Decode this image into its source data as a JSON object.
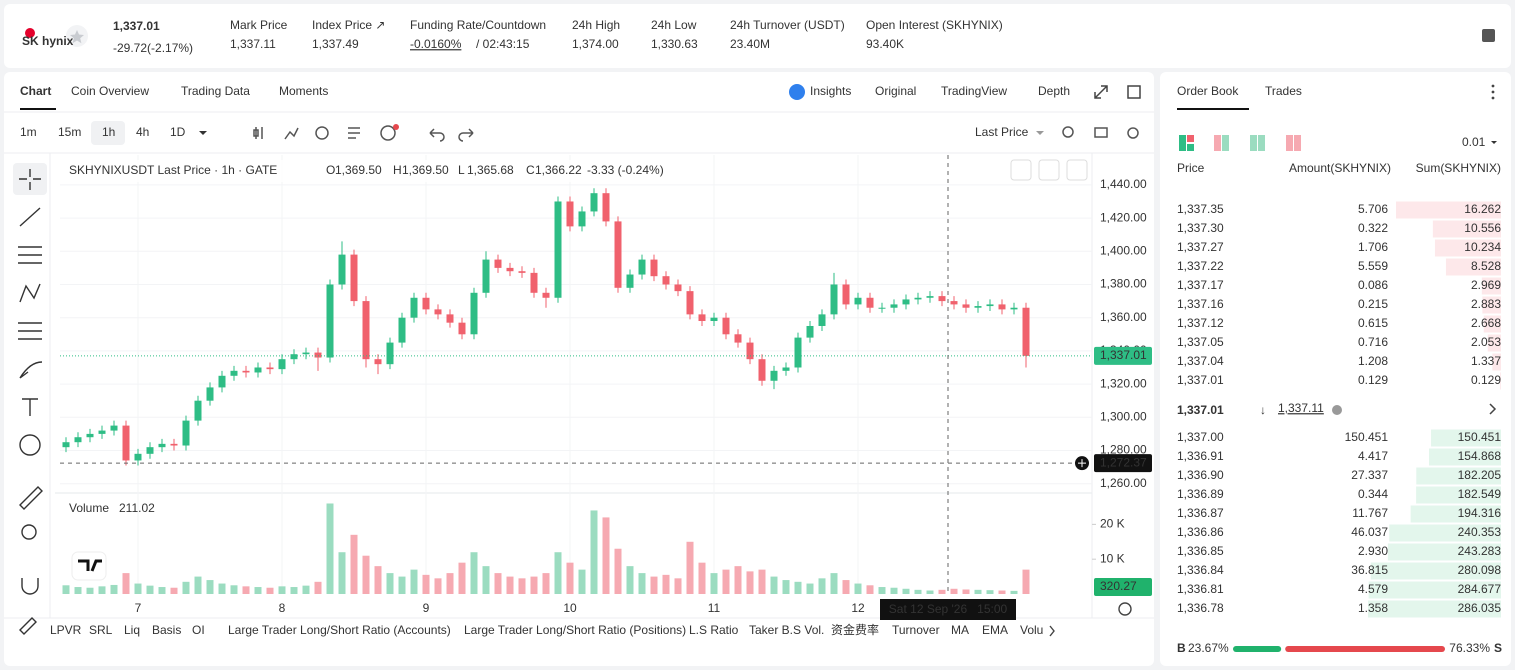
{
  "header": {
    "logo": "SK hynix",
    "price": "1,337.01",
    "change": "-29.72(-2.17%)",
    "stats": [
      {
        "label": "Mark Price",
        "value": "1,337.11"
      },
      {
        "label": "Index Price ↗",
        "value": "1,337.49"
      },
      {
        "label": "Funding Rate/Countdown",
        "value": "-0.0160%",
        "extra": "/ 02:43:15"
      },
      {
        "label": "24h High",
        "value": "1,374.00"
      },
      {
        "label": "24h Low",
        "value": "1,330.63"
      },
      {
        "label": "24h Turnover (USDT)",
        "value": "23.40M"
      },
      {
        "label": "Open Interest (SKHYNIX)",
        "value": "93.40K"
      }
    ]
  },
  "chart_panel": {
    "tabs": [
      "Chart",
      "Coin Overview",
      "Trading Data",
      "Moments"
    ],
    "views": [
      "Insights",
      "Original",
      "TradingView",
      "Depth"
    ],
    "intervals": [
      "1m",
      "15m",
      "1h",
      "4h",
      "1D"
    ],
    "price_source": "Last Price",
    "bottom_items": [
      "LPVR",
      "SRL",
      "Liq",
      "Basis",
      "OI",
      "Large Trader Long/Short Ratio (Accounts)",
      "Large Trader Long/Short Ratio (Positions)",
      "L.S Ratio",
      "Taker B.S Vol.",
      "资金费率",
      "Turnover",
      "MA",
      "EMA",
      "Volu"
    ]
  },
  "chart_data": [
    {
      "type": "candlestick",
      "title": "SKHYNIXUSDT Last Price · 1h · GATE",
      "ohlc_legend": [
        {
          "label": "O",
          "value": "1,369.50"
        },
        {
          "label": "H",
          "value": "1,369.50"
        },
        {
          "label": "L",
          "value": "1,365.68"
        },
        {
          "label": "C",
          "value": "1,366.22"
        }
      ],
      "change": "-3.33 (-0.24%)",
      "colors": {
        "up": "#2ebd85",
        "down": "#f0616d"
      },
      "open": [
        1282,
        1285,
        1288,
        1290,
        1292,
        1295,
        1274,
        1278,
        1282,
        1284,
        1283,
        1298,
        1310,
        1318,
        1325,
        1328,
        1327,
        1330,
        1329,
        1335,
        1338,
        1339,
        1336,
        1380,
        1398,
        1370,
        1335,
        1332,
        1345,
        1360,
        1372,
        1365,
        1362,
        1357,
        1350,
        1375,
        1395,
        1390,
        1388,
        1387,
        1375,
        1372,
        1430,
        1415,
        1424,
        1435,
        1418,
        1378,
        1386,
        1395,
        1385,
        1380,
        1376,
        1362,
        1358,
        1360,
        1350,
        1345,
        1335,
        1322,
        1328,
        1330,
        1348,
        1355,
        1362,
        1380,
        1368,
        1372,
        1366,
        1366,
        1368,
        1371,
        1372,
        1373,
        1370,
        1368,
        1366,
        1367,
        1368,
        1365,
        1366
      ],
      "high": [
        1288,
        1291,
        1293,
        1295,
        1298,
        1298,
        1281,
        1285,
        1287,
        1287,
        1301,
        1313,
        1321,
        1328,
        1331,
        1331,
        1333,
        1333,
        1338,
        1341,
        1342,
        1342,
        1383,
        1406,
        1401,
        1373,
        1338,
        1348,
        1363,
        1375,
        1375,
        1368,
        1365,
        1360,
        1378,
        1400,
        1398,
        1393,
        1391,
        1390,
        1378,
        1433,
        1433,
        1427,
        1438,
        1438,
        1421,
        1389,
        1398,
        1398,
        1388,
        1383,
        1379,
        1365,
        1363,
        1363,
        1353,
        1348,
        1338,
        1331,
        1333,
        1351,
        1358,
        1365,
        1387,
        1383,
        1375,
        1375,
        1369,
        1371,
        1374,
        1375,
        1376,
        1376,
        1373,
        1371,
        1370,
        1371,
        1371,
        1369,
        1369
      ],
      "low": [
        1279,
        1282,
        1285,
        1287,
        1289,
        1271,
        1271,
        1275,
        1279,
        1280,
        1280,
        1295,
        1307,
        1315,
        1322,
        1324,
        1324,
        1326,
        1326,
        1332,
        1335,
        1328,
        1333,
        1377,
        1367,
        1330,
        1326,
        1329,
        1342,
        1357,
        1362,
        1359,
        1354,
        1347,
        1347,
        1372,
        1387,
        1385,
        1384,
        1372,
        1366,
        1369,
        1412,
        1412,
        1421,
        1415,
        1375,
        1375,
        1383,
        1382,
        1377,
        1373,
        1359,
        1355,
        1355,
        1347,
        1342,
        1332,
        1319,
        1317,
        1325,
        1327,
        1345,
        1352,
        1359,
        1365,
        1365,
        1363,
        1363,
        1363,
        1365,
        1368,
        1369,
        1367,
        1365,
        1363,
        1363,
        1364,
        1362,
        1362,
        1330
      ],
      "close": [
        1285,
        1288,
        1290,
        1292,
        1295,
        1274,
        1278,
        1282,
        1284,
        1283,
        1298,
        1310,
        1318,
        1325,
        1328,
        1327,
        1330,
        1329,
        1335,
        1338,
        1339,
        1336,
        1380,
        1398,
        1370,
        1335,
        1332,
        1345,
        1360,
        1372,
        1365,
        1362,
        1357,
        1350,
        1375,
        1395,
        1390,
        1388,
        1387,
        1375,
        1372,
        1430,
        1415,
        1424,
        1435,
        1418,
        1378,
        1386,
        1395,
        1385,
        1380,
        1376,
        1362,
        1358,
        1360,
        1350,
        1345,
        1335,
        1322,
        1328,
        1330,
        1348,
        1355,
        1362,
        1380,
        1368,
        1372,
        1366,
        1366,
        1368,
        1371,
        1372,
        1373,
        1370,
        1368,
        1366,
        1367,
        1368,
        1365,
        1366,
        1337
      ],
      "xlim": [
        -0.5,
        85.5
      ],
      "xticks": [
        {
          "value": 6,
          "label": "7"
        },
        {
          "value": 18,
          "label": "8"
        },
        {
          "value": 30,
          "label": "9"
        },
        {
          "value": 42,
          "label": "10"
        },
        {
          "value": 54,
          "label": "11"
        },
        {
          "value": 66,
          "label": "12"
        }
      ],
      "ylim": [
        1255,
        1458
      ],
      "yticks": [
        {
          "value": 1260,
          "label": "1,260.00"
        },
        {
          "value": 1280,
          "label": "1,280.00"
        },
        {
          "value": 1300,
          "label": "1,300.00"
        },
        {
          "value": 1320,
          "label": "1,320.00"
        },
        {
          "value": 1340,
          "label": "1,340.00"
        },
        {
          "value": 1360,
          "label": "1,360.00"
        },
        {
          "value": 1380,
          "label": "1,380.00"
        },
        {
          "value": 1400,
          "label": "1,400.00"
        },
        {
          "value": 1420,
          "label": "1,420.00"
        },
        {
          "value": 1440,
          "label": "1,440.00"
        }
      ],
      "grid": true,
      "last_price": {
        "value": 1337.01,
        "label": "1,337.01"
      },
      "crosshair": {
        "price": {
          "value": 1272.37,
          "label": "1,272.37"
        },
        "time": {
          "value": 73.5,
          "label": "Sat 12 Sep '26   15:00"
        }
      }
    },
    {
      "type": "bar",
      "title": "Volume",
      "last": "211.02",
      "values": [
        2500,
        2000,
        1800,
        2200,
        2600,
        6000,
        3000,
        2400,
        2000,
        1800,
        3500,
        5000,
        4000,
        3000,
        2500,
        2200,
        2000,
        1800,
        2200,
        2000,
        2400,
        3500,
        26000,
        12000,
        17000,
        11000,
        8000,
        6000,
        5000,
        7000,
        5500,
        4500,
        6000,
        9000,
        12000,
        8000,
        6000,
        5000,
        4500,
        5000,
        6000,
        12000,
        9000,
        7000,
        24000,
        22000,
        13000,
        8000,
        6000,
        5000,
        5500,
        4500,
        15000,
        9000,
        6000,
        7000,
        8000,
        6500,
        7000,
        5000,
        4000,
        3500,
        3000,
        4500,
        6000,
        4000,
        3000,
        2500,
        2000,
        1800,
        1500,
        1200,
        1000,
        1200,
        1500,
        1300,
        1200,
        1100,
        1000,
        900,
        7000
      ],
      "colors": {
        "up": "#9bdcc0",
        "down": "#f6a9b1"
      },
      "ylim": [
        0,
        27000
      ],
      "yticks": [
        {
          "value": 10000,
          "label": "10 K"
        },
        {
          "value": 20000,
          "label": "20 K"
        }
      ],
      "axis_label": "320.27"
    }
  ],
  "order_book": {
    "tabs": [
      "Order Book",
      "Trades"
    ],
    "precision": "0.01",
    "headers": [
      "Price",
      "Amount(SKHYNIX)",
      "Sum(SKHYNIX)"
    ],
    "asks": [
      {
        "price": "1,337.35",
        "amount": "5.706",
        "sum": 16.262
      },
      {
        "price": "1,337.30",
        "amount": "0.322",
        "sum": 10.556
      },
      {
        "price": "1,337.27",
        "amount": "1.706",
        "sum": 10.234
      },
      {
        "price": "1,337.22",
        "amount": "5.559",
        "sum": 8.528
      },
      {
        "price": "1,337.17",
        "amount": "0.086",
        "sum": 2.969
      },
      {
        "price": "1,337.16",
        "amount": "0.215",
        "sum": 2.883
      },
      {
        "price": "1,337.12",
        "amount": "0.615",
        "sum": 2.668
      },
      {
        "price": "1,337.05",
        "amount": "0.716",
        "sum": 2.053
      },
      {
        "price": "1,337.04",
        "amount": "1.208",
        "sum": 1.337
      },
      {
        "price": "1,337.01",
        "amount": "0.129",
        "sum": 0.129
      }
    ],
    "mid": {
      "price": "1,337.01",
      "arrow": "↓",
      "mark": "1,337.11"
    },
    "bids": [
      {
        "price": "1,337.00",
        "amount": "150.451",
        "sum": 150.451
      },
      {
        "price": "1,336.91",
        "amount": "4.417",
        "sum": 154.868
      },
      {
        "price": "1,336.90",
        "amount": "27.337",
        "sum": 182.205
      },
      {
        "price": "1,336.89",
        "amount": "0.344",
        "sum": 182.549
      },
      {
        "price": "1,336.87",
        "amount": "11.767",
        "sum": 194.316
      },
      {
        "price": "1,336.86",
        "amount": "46.037",
        "sum": 240.353
      },
      {
        "price": "1,336.85",
        "amount": "2.930",
        "sum": 243.283
      },
      {
        "price": "1,336.84",
        "amount": "36.815",
        "sum": 280.098
      },
      {
        "price": "1,336.81",
        "amount": "4.579",
        "sum": 284.677
      },
      {
        "price": "1,336.78",
        "amount": "1.358",
        "sum": 286.035
      }
    ],
    "ratio": {
      "buy_label": "B",
      "buy": 23.67,
      "buy_text": "23.67%",
      "sell": 76.33,
      "sell_text": "76.33%",
      "sell_label": "S"
    }
  }
}
